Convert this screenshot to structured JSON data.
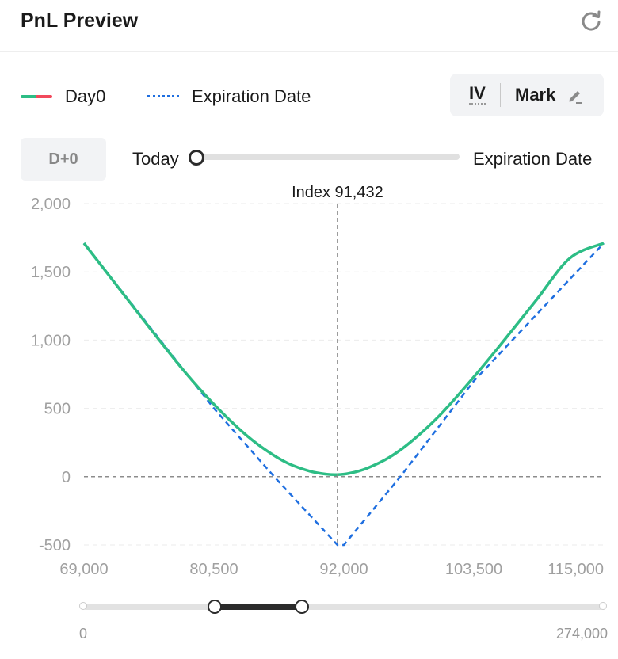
{
  "header": {
    "title": "PnL Preview",
    "refresh_icon": "refresh-icon"
  },
  "legend": {
    "day0": "Day0",
    "expiration": "Expiration Date",
    "day0_colors": [
      "#2dbd85",
      "#f2495c"
    ],
    "expiration_color": "#1f6fe0"
  },
  "toggles": {
    "iv": "IV",
    "mark": "Mark",
    "edit_icon": "pencil-icon"
  },
  "time_slider": {
    "button": "D+0",
    "start_label": "Today",
    "end_label": "Expiration Date",
    "value": 0
  },
  "range_slider": {
    "min_label": "0",
    "max_label": "274,000",
    "min": 0,
    "max": 274000,
    "low": 69000,
    "high": 115000
  },
  "chart_data": {
    "type": "line",
    "xlim": [
      69000,
      115000
    ],
    "ylim": [
      -500,
      2000
    ],
    "x_ticks": [
      "69,000",
      "80,500",
      "92,000",
      "103,500",
      "115,000"
    ],
    "y_ticks": [
      "2,000",
      "1,500",
      "1,000",
      "500",
      "0",
      "-500"
    ],
    "x_tick_values": [
      69000,
      80500,
      92000,
      103500,
      115000
    ],
    "y_tick_values": [
      2000,
      1500,
      1000,
      500,
      0,
      -500
    ],
    "index_label": "Index 91,432",
    "index_value": 91432,
    "series": [
      {
        "name": "Day0",
        "color": "#2dbd85",
        "style": "solid",
        "x": [
          69000,
          72000,
          75000,
          78000,
          80500,
          83000,
          85000,
          87000,
          89000,
          90500,
          91432,
          92500,
          94000,
          96000,
          98000,
          100500,
          103500,
          106000,
          109000,
          112000,
          115000
        ],
        "y": [
          1710,
          1390,
          1070,
          760,
          530,
          330,
          200,
          100,
          40,
          18,
          15,
          25,
          60,
          140,
          260,
          450,
          730,
          980,
          1290,
          1600,
          1710
        ]
      },
      {
        "name": "Expiration Date",
        "color": "#1f6fe0",
        "style": "dotted",
        "x": [
          69000,
          80500,
          86000,
          91432,
          92000,
          97000,
          103500,
          115000
        ],
        "y": [
          1710,
          500,
          -15,
          -500,
          -500,
          0,
          700,
          1710
        ]
      }
    ]
  }
}
